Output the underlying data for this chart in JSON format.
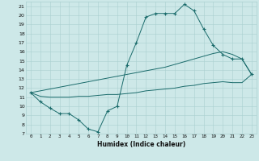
{
  "xlabel": "Humidex (Indice chaleur)",
  "bg_color": "#cde8e8",
  "grid_color": "#aad0d0",
  "line_color": "#1a6b6b",
  "x": [
    0,
    1,
    2,
    3,
    4,
    5,
    6,
    7,
    8,
    9,
    10,
    11,
    12,
    13,
    14,
    15,
    16,
    17,
    18,
    19,
    20,
    21,
    22,
    23
  ],
  "y_main": [
    11.5,
    10.5,
    9.8,
    9.2,
    9.2,
    8.5,
    7.5,
    7.2,
    9.5,
    10.0,
    14.5,
    17.0,
    19.8,
    20.2,
    20.2,
    20.2,
    21.2,
    20.5,
    18.5,
    16.7,
    15.7,
    15.2,
    15.2,
    13.5
  ],
  "y_upper": [
    11.5,
    11.7,
    11.9,
    12.1,
    12.3,
    12.5,
    12.7,
    12.9,
    13.1,
    13.3,
    13.5,
    13.7,
    13.9,
    14.1,
    14.3,
    14.6,
    14.9,
    15.2,
    15.5,
    15.8,
    16.0,
    15.7,
    15.2,
    13.5
  ],
  "y_lower": [
    11.5,
    11.1,
    11.0,
    11.0,
    11.0,
    11.1,
    11.1,
    11.2,
    11.3,
    11.3,
    11.4,
    11.5,
    11.7,
    11.8,
    11.9,
    12.0,
    12.2,
    12.3,
    12.5,
    12.6,
    12.7,
    12.6,
    12.6,
    13.5
  ],
  "ylim": [
    7,
    21.5
  ],
  "xlim": [
    -0.5,
    23.5
  ],
  "yticks": [
    7,
    8,
    9,
    10,
    11,
    12,
    13,
    14,
    15,
    16,
    17,
    18,
    19,
    20,
    21
  ],
  "xticks": [
    0,
    1,
    2,
    3,
    4,
    5,
    6,
    7,
    8,
    9,
    10,
    11,
    12,
    13,
    14,
    15,
    16,
    17,
    18,
    19,
    20,
    21,
    22,
    23
  ]
}
